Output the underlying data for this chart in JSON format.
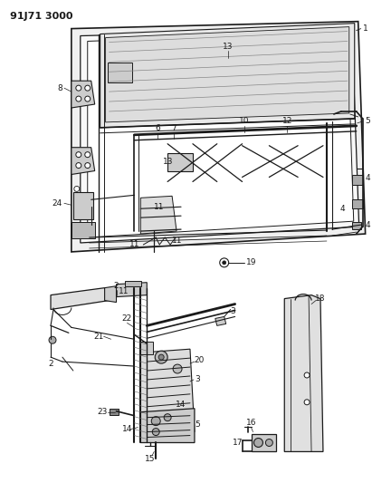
{
  "title": "91J71 3000",
  "bg": "#ffffff",
  "lc": "#1a1a1a",
  "dpi": 100,
  "fw": 4.11,
  "fh": 5.33
}
